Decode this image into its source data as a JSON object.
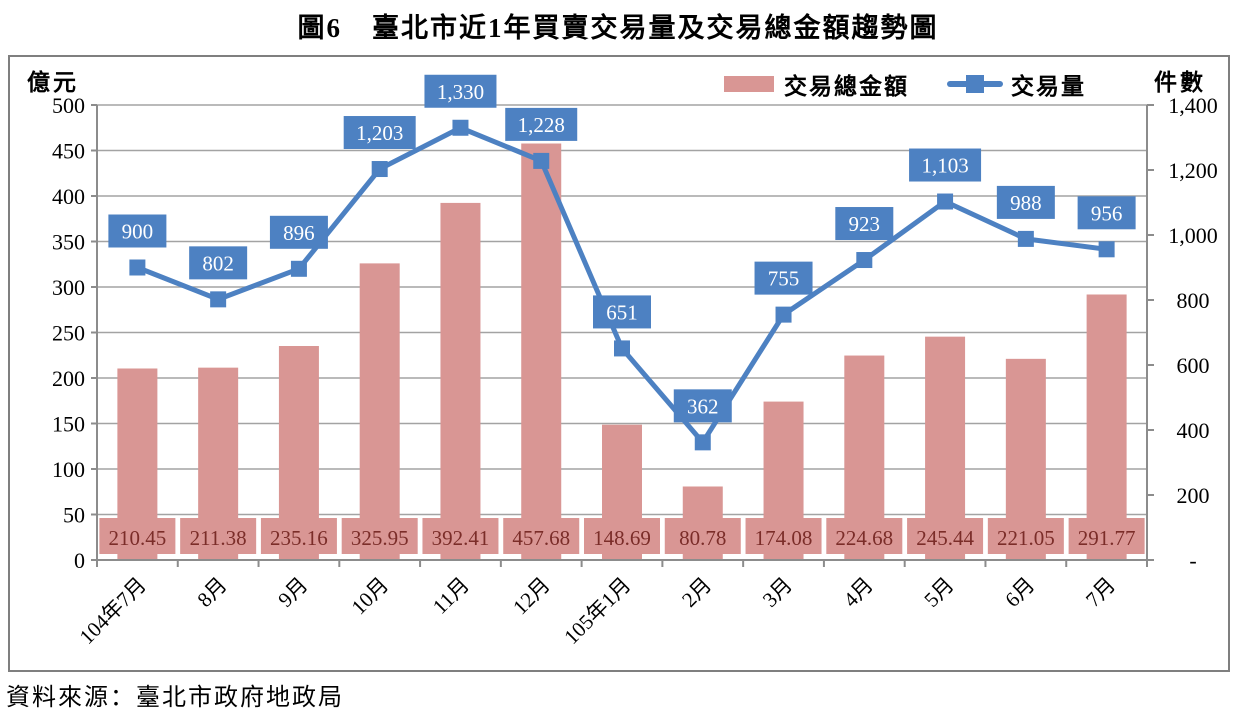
{
  "title": {
    "prefix": "圖6",
    "main": "臺北市近1年買賣交易量及交易總金額趨勢圖"
  },
  "source": "資料來源：臺北市政府地政局",
  "legend": {
    "amount_label": "交易總金額",
    "volume_label": "交易量"
  },
  "axes": {
    "left_title": "億元",
    "right_title": "件數",
    "left_ticks": [
      {
        "v": 0,
        "label": "0"
      },
      {
        "v": 50,
        "label": "50"
      },
      {
        "v": 100,
        "label": "100"
      },
      {
        "v": 150,
        "label": "150"
      },
      {
        "v": 200,
        "label": "200"
      },
      {
        "v": 250,
        "label": "250"
      },
      {
        "v": 300,
        "label": "300"
      },
      {
        "v": 350,
        "label": "350"
      },
      {
        "v": 400,
        "label": "400"
      },
      {
        "v": 450,
        "label": "450"
      },
      {
        "v": 500,
        "label": "500"
      }
    ],
    "right_ticks": [
      {
        "v": 0,
        "label": "-"
      },
      {
        "v": 200,
        "label": "200"
      },
      {
        "v": 400,
        "label": "400"
      },
      {
        "v": 600,
        "label": "600"
      },
      {
        "v": 800,
        "label": "800"
      },
      {
        "v": 1000,
        "label": "1,000"
      },
      {
        "v": 1200,
        "label": "1,200"
      },
      {
        "v": 1400,
        "label": "1,400"
      }
    ]
  },
  "colors": {
    "bar": "#d99694",
    "bar_label_text": "#7b2d29",
    "line": "#4d81c2",
    "value_box": "#4d81c2",
    "value_text": "#ffffff",
    "gridline": "#a3a3a3",
    "axis": "#8c8c8c",
    "frame_border": "#7f7f7f",
    "text": "#000000"
  },
  "chart_data": {
    "type": "combo",
    "title": "圖6 臺北市近1年買賣交易量及交易總金額趨勢圖",
    "categories": [
      "104年7月",
      "8月",
      "9月",
      "10月",
      "11月",
      "12月",
      "105年1月",
      "2月",
      "3月",
      "4月",
      "5月",
      "6月",
      "7月"
    ],
    "series": [
      {
        "name": "交易總金額",
        "type": "bar",
        "axis": "left",
        "ylabel": "億元",
        "ylim": [
          0,
          500
        ],
        "values": [
          210.45,
          211.38,
          235.16,
          325.95,
          392.41,
          457.68,
          148.69,
          80.78,
          174.08,
          224.68,
          245.44,
          221.05,
          291.77
        ],
        "labels": [
          "210.45",
          "211.38",
          "235.16",
          "325.95",
          "392.41",
          "457.68",
          "148.69",
          "80.78",
          "174.08",
          "224.68",
          "245.44",
          "221.05",
          "291.77"
        ]
      },
      {
        "name": "交易量",
        "type": "line",
        "axis": "right",
        "ylabel": "件數",
        "ylim": [
          0,
          1400
        ],
        "values": [
          900,
          802,
          896,
          1203,
          1330,
          1228,
          651,
          362,
          755,
          923,
          1103,
          988,
          956
        ],
        "labels": [
          "900",
          "802",
          "896",
          "1,203",
          "1,330",
          "1,228",
          "651",
          "362",
          "755",
          "923",
          "1,103",
          "988",
          "956"
        ]
      }
    ],
    "legend_position": "top-right",
    "grid": true
  }
}
